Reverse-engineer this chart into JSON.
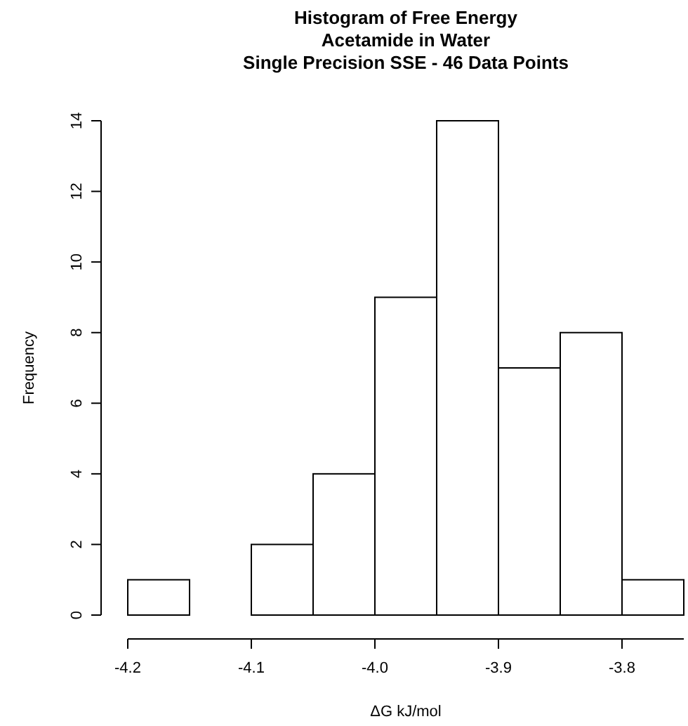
{
  "chart_data": {
    "type": "histogram",
    "title": "Histogram of Free Energy\nAcetamide in Water\nSingle Precision SSE - 46 Data Points",
    "xlabel": "ΔG kJ/mol",
    "ylabel": "Frequency",
    "bins": [
      -4.2,
      -4.15,
      -4.1,
      -4.05,
      -4.0,
      -3.95,
      -3.9,
      -3.85,
      -3.8,
      -3.75
    ],
    "values": [
      1,
      0,
      2,
      4,
      9,
      14,
      7,
      8,
      1
    ],
    "color": "#ffffff",
    "xlim": [
      -4.2,
      -3.75
    ],
    "xticks": [
      -4.2,
      -4.1,
      {
        "value": -4.0,
        "label": "-4.0"
      },
      -3.9,
      -3.8
    ],
    "ylim": [
      0,
      14
    ],
    "yticks": [
      0,
      2,
      4,
      6,
      8,
      10,
      12,
      14
    ]
  }
}
